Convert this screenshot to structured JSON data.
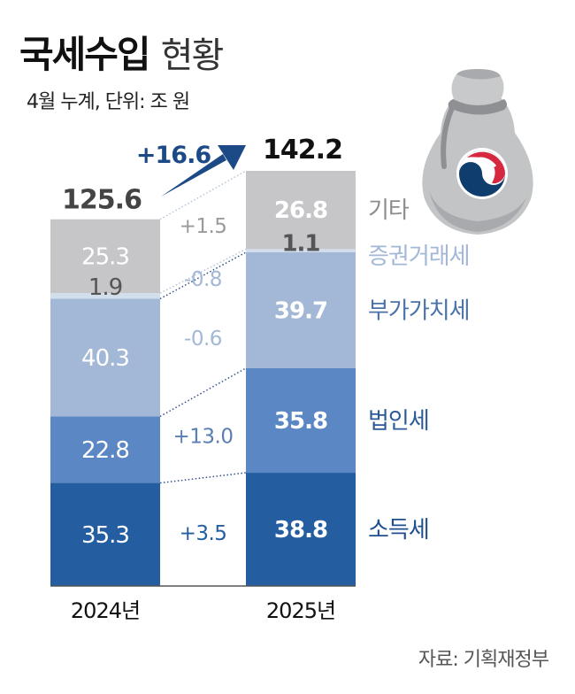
{
  "chart_data": {
    "type": "bar",
    "subtype": "stacked",
    "title": "국세수입",
    "title_suffix": "현황",
    "subtitle": "4월 누계, 단위: 조 원",
    "categories": [
      "2024년",
      "2025년"
    ],
    "totals": [
      125.6,
      142.2
    ],
    "total_change": "+16.6",
    "series": [
      {
        "name": "소득세",
        "values": [
          35.3,
          38.8
        ],
        "change": "+3.5",
        "color": "#245ea1",
        "label_color": "#ffffff",
        "legend_color": "#1f4f8c",
        "diff_color": "#245ea1"
      },
      {
        "name": "법인세",
        "values": [
          22.8,
          35.8
        ],
        "change": "+13.0",
        "color": "#5b88c4",
        "label_color": "#ffffff",
        "legend_color": "#2a5a98",
        "diff_color": "#5b7fb2"
      },
      {
        "name": "부가가치세",
        "values": [
          40.3,
          39.7
        ],
        "change": "-0.6",
        "color": "#a3b7d6",
        "label_color": "#ffffff",
        "legend_color": "#4a72aa",
        "diff_color": "#a3b7d6"
      },
      {
        "name": "증권거래세",
        "values": [
          1.9,
          1.1
        ],
        "change": "-0.8",
        "color": "#d3deec",
        "label_color": "#555555",
        "legend_color": "#a3b7d6",
        "diff_color": "#a3b7d6"
      },
      {
        "name": "기타",
        "values": [
          25.3,
          26.8
        ],
        "change": "+1.5",
        "color": "#c6c6c8",
        "label_color": "#ffffff",
        "legend_color": "#8c8c8c",
        "diff_color": "#9a9a9a"
      }
    ],
    "xlabel": "",
    "ylabel": "",
    "ylim": [
      0,
      142.2
    ],
    "grid": false,
    "legend_position": "right",
    "arrow_color": "#1b4a87"
  },
  "source": "자료: 기획재정부",
  "illustration": "money-bag-icon with korean government emblem"
}
